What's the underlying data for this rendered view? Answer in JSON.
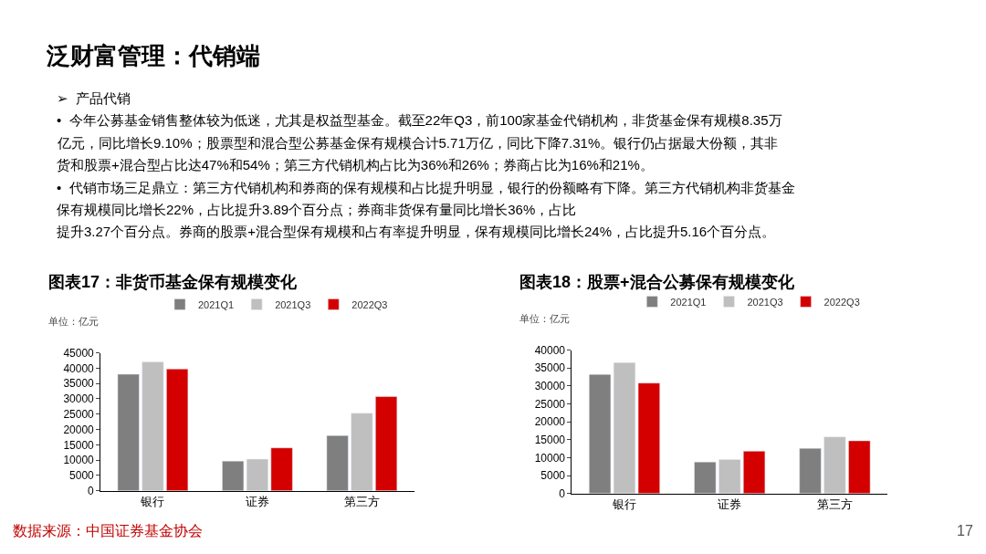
{
  "chart_data": [
    {
      "type": "other",
      "title": "泛财富管理：代销端",
      "annotations": [
        "➢  产品代销",
        "•  今年公募基金销售整体较为低迷，尤其是权益型基金。截至22年Q3，前100家基金代销机构，非货基金保有规模8.35万",
        "亿元，同比增长9.10%；股票型和混合型公募基金保有规模合计5.71万亿，同比下降7.31%。银行仍占据最大份额，其非",
        "货和股票+混合型占比达47%和54%；第三方代销机构占比为36%和26%；券商占比为16%和21%。",
        "•  代销市场三足鼎立：第三方代销机构和券商的保有规模和占比提升明显，银行的份额略有下降。第三方代销机构非货基金",
        "保有规模同比增长22%，占比提升3.89个百分点；券商非货保有量同比增长36%，占比",
        "提升3.27个百分点。券商的股票+混合型保有规模和占有率提升明显，保有规模同比增长24%，占比提升5.16个百分点。",
        "数据来源：中国证券基金协会",
        "17"
      ]
    },
    {
      "type": "bar",
      "title": "图表17：非货币基金保有规模变化",
      "ylabel": "单位：亿元",
      "categories": [
        "银行",
        "证券",
        "第三方"
      ],
      "series": [
        {
          "name": "2021Q1",
          "color": "#7f7f7f",
          "values": [
            38000,
            9700,
            18000
          ]
        },
        {
          "name": "2021Q3",
          "color": "#bfbfbf",
          "values": [
            42000,
            10300,
            25300
          ]
        },
        {
          "name": "2022Q3",
          "color": "#d40000",
          "values": [
            39700,
            14000,
            30700
          ]
        }
      ],
      "ylim": [
        0,
        45000
      ],
      "yticks": [
        0,
        5000,
        10000,
        15000,
        20000,
        25000,
        30000,
        35000,
        40000,
        45000
      ],
      "legend": "top"
    },
    {
      "type": "bar",
      "title": "图表18：股票+混合公募保有规模变化",
      "ylabel": "单位：亿元",
      "categories": [
        "银行",
        "证券",
        "第三方"
      ],
      "series": [
        {
          "name": "2021Q1",
          "color": "#7f7f7f",
          "values": [
            33200,
            8800,
            12600
          ]
        },
        {
          "name": "2021Q3",
          "color": "#bfbfbf",
          "values": [
            36500,
            9500,
            15800
          ]
        },
        {
          "name": "2022Q3",
          "color": "#d40000",
          "values": [
            30800,
            11800,
            14700
          ]
        }
      ],
      "ylim": [
        0,
        40000
      ],
      "yticks": [
        0,
        5000,
        10000,
        15000,
        20000,
        25000,
        30000,
        35000,
        40000
      ],
      "legend": "top"
    }
  ]
}
